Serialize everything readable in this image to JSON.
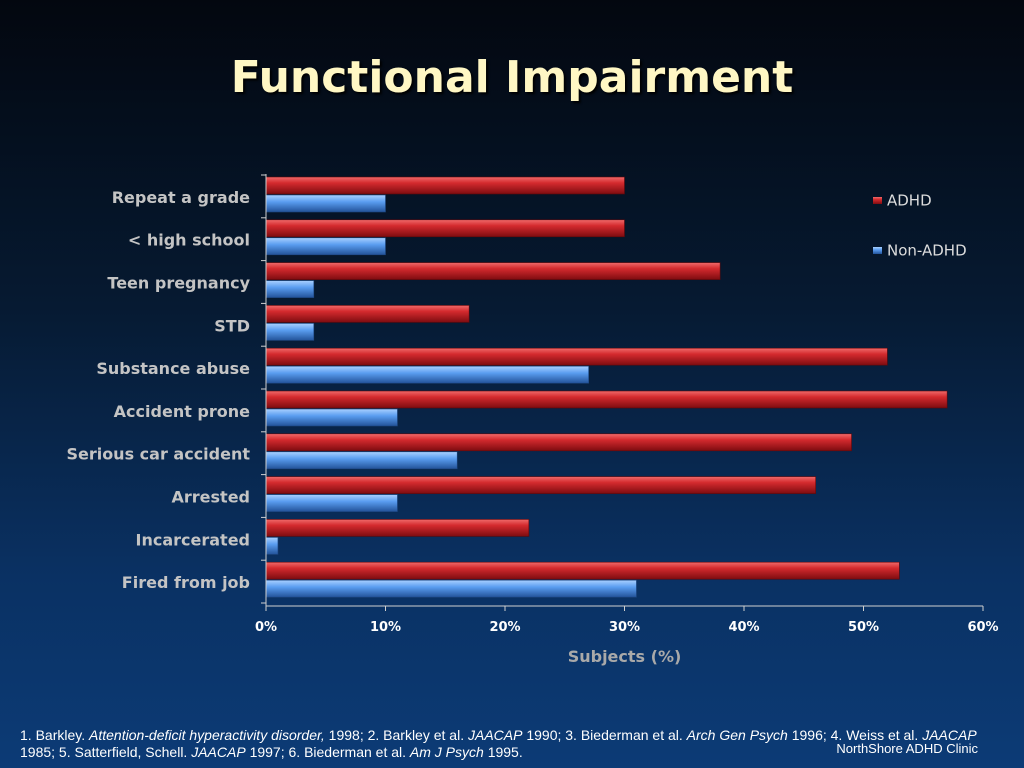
{
  "slide": {
    "title": "Functional Impairment",
    "clinic": "NorthShore ADHD Clinic"
  },
  "references": [
    {
      "text": "1. Barkley. ",
      "italic": false
    },
    {
      "text": "Attention-deficit hyperactivity disorder,",
      "italic": true
    },
    {
      "text": " 1998; 2. Barkley et al. ",
      "italic": false
    },
    {
      "text": "JAACAP",
      "italic": true
    },
    {
      "text": " 1990; 3. Biederman et al. ",
      "italic": false
    },
    {
      "text": "Arch Gen Psych",
      "italic": true
    },
    {
      "text": " 1996; 4. Weiss et al. ",
      "italic": false
    },
    {
      "text": "JAACAP",
      "italic": true
    },
    {
      "text": " 1985; 5. Satterfield, Schell. ",
      "italic": false
    },
    {
      "text": "JAACAP",
      "italic": true
    },
    {
      "text": " 1997; 6. Biederman et al. ",
      "italic": false
    },
    {
      "text": "Am J Psych",
      "italic": true
    },
    {
      "text": " 1995.",
      "italic": false
    }
  ],
  "chart_data": {
    "type": "bar",
    "orientation": "horizontal",
    "categories": [
      "Repeat a grade",
      "< high school",
      "Teen pregnancy",
      "STD",
      "Substance abuse",
      "Accident prone",
      "Serious car accident",
      "Arrested",
      "Incarcerated",
      "Fired from job"
    ],
    "series": [
      {
        "name": "ADHD",
        "color": "#c41e24",
        "values": [
          30,
          30,
          38,
          17,
          52,
          57,
          49,
          46,
          22,
          53
        ]
      },
      {
        "name": "Non-ADHD",
        "color": "#4a8ee0",
        "values": [
          10,
          10,
          4,
          4,
          27,
          11,
          16,
          11,
          1,
          31
        ]
      }
    ],
    "xlabel": "Subjects (%)",
    "ylabel": "",
    "xlim": [
      0,
      60
    ],
    "xticks": [
      "0%",
      "10%",
      "20%",
      "30%",
      "40%",
      "50%",
      "60%"
    ],
    "xtick_values": [
      0,
      10,
      20,
      30,
      40,
      50,
      60
    ],
    "legend_position": "top-right",
    "grid": false
  }
}
